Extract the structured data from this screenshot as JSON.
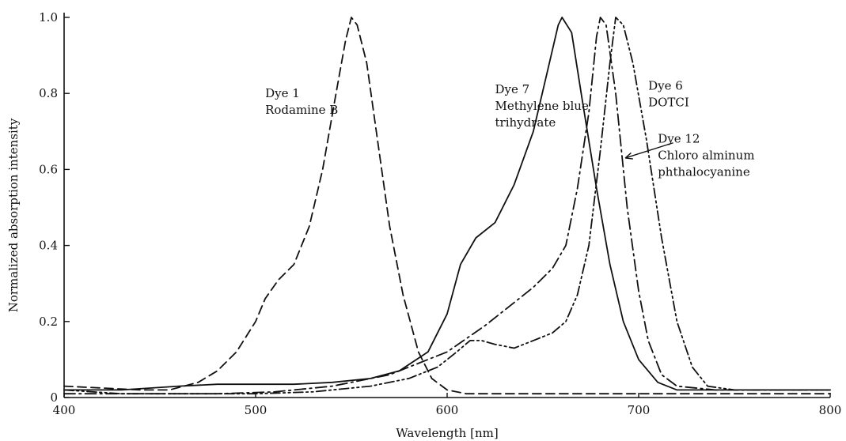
{
  "chart_data": {
    "type": "line",
    "title": "",
    "xlabel": "Wavelength [nm]",
    "ylabel": "Normalized absorption intensity",
    "xlim": [
      400,
      800
    ],
    "ylim": [
      0,
      1.0
    ],
    "xticks": [
      400,
      500,
      600,
      700,
      800
    ],
    "xtick_labels": [
      "400",
      "500",
      "600",
      "700",
      "800"
    ],
    "yticks": [
      0,
      0.2,
      0.4,
      0.6,
      0.8,
      1.0
    ],
    "ytick_labels": [
      "0",
      "0.2",
      "0.4",
      "0.6",
      "0.8",
      "1.0"
    ],
    "grid": false,
    "legend": "none",
    "series": [
      {
        "dash": "dashed",
        "points": [
          [
            400,
            0.03
          ],
          [
            420,
            0.025
          ],
          [
            440,
            0.02
          ],
          [
            455,
            0.02
          ],
          [
            470,
            0.04
          ],
          [
            480,
            0.07
          ],
          [
            490,
            0.12
          ],
          [
            500,
            0.2
          ],
          [
            505,
            0.26
          ],
          [
            512,
            0.31
          ],
          [
            520,
            0.35
          ],
          [
            528,
            0.45
          ],
          [
            535,
            0.6
          ],
          [
            542,
            0.8
          ],
          [
            547,
            0.94
          ],
          [
            550,
            1.0
          ],
          [
            553,
            0.98
          ],
          [
            558,
            0.88
          ],
          [
            563,
            0.7
          ],
          [
            570,
            0.45
          ],
          [
            577,
            0.27
          ],
          [
            585,
            0.12
          ],
          [
            592,
            0.05
          ],
          [
            600,
            0.02
          ],
          [
            610,
            0.01
          ],
          [
            640,
            0.01
          ],
          [
            800,
            0.01
          ]
        ]
      },
      {
        "dash": "solid",
        "points": [
          [
            400,
            0.02
          ],
          [
            430,
            0.02
          ],
          [
            460,
            0.03
          ],
          [
            480,
            0.035
          ],
          [
            520,
            0.035
          ],
          [
            540,
            0.04
          ],
          [
            560,
            0.05
          ],
          [
            575,
            0.07
          ],
          [
            590,
            0.12
          ],
          [
            600,
            0.22
          ],
          [
            607,
            0.35
          ],
          [
            615,
            0.42
          ],
          [
            625,
            0.46
          ],
          [
            635,
            0.56
          ],
          [
            645,
            0.7
          ],
          [
            652,
            0.85
          ],
          [
            658,
            0.98
          ],
          [
            660,
            1.0
          ],
          [
            665,
            0.96
          ],
          [
            670,
            0.8
          ],
          [
            678,
            0.55
          ],
          [
            685,
            0.35
          ],
          [
            692,
            0.2
          ],
          [
            700,
            0.1
          ],
          [
            710,
            0.04
          ],
          [
            720,
            0.02
          ],
          [
            750,
            0.02
          ],
          [
            800,
            0.02
          ]
        ]
      },
      {
        "dash": "dash-dot",
        "points": [
          [
            400,
            0.01
          ],
          [
            430,
            0.01
          ],
          [
            450,
            0.01
          ],
          [
            480,
            0.01
          ],
          [
            510,
            0.015
          ],
          [
            540,
            0.03
          ],
          [
            570,
            0.06
          ],
          [
            600,
            0.12
          ],
          [
            620,
            0.19
          ],
          [
            635,
            0.25
          ],
          [
            645,
            0.29
          ],
          [
            655,
            0.34
          ],
          [
            662,
            0.4
          ],
          [
            668,
            0.55
          ],
          [
            674,
            0.75
          ],
          [
            678,
            0.95
          ],
          [
            680,
            1.0
          ],
          [
            683,
            0.98
          ],
          [
            688,
            0.8
          ],
          [
            694,
            0.5
          ],
          [
            700,
            0.28
          ],
          [
            705,
            0.15
          ],
          [
            712,
            0.06
          ],
          [
            720,
            0.03
          ],
          [
            740,
            0.02
          ],
          [
            800,
            0.02
          ]
        ]
      },
      {
        "dash": "dash-dot-dot",
        "points": [
          [
            400,
            0.02
          ],
          [
            430,
            0.01
          ],
          [
            470,
            0.01
          ],
          [
            500,
            0.01
          ],
          [
            530,
            0.015
          ],
          [
            560,
            0.03
          ],
          [
            580,
            0.05
          ],
          [
            595,
            0.08
          ],
          [
            605,
            0.12
          ],
          [
            612,
            0.15
          ],
          [
            618,
            0.15
          ],
          [
            625,
            0.14
          ],
          [
            635,
            0.13
          ],
          [
            645,
            0.15
          ],
          [
            655,
            0.17
          ],
          [
            662,
            0.2
          ],
          [
            668,
            0.27
          ],
          [
            674,
            0.4
          ],
          [
            680,
            0.65
          ],
          [
            685,
            0.88
          ],
          [
            688,
            1.0
          ],
          [
            692,
            0.98
          ],
          [
            697,
            0.88
          ],
          [
            704,
            0.68
          ],
          [
            712,
            0.42
          ],
          [
            720,
            0.2
          ],
          [
            728,
            0.08
          ],
          [
            736,
            0.03
          ],
          [
            750,
            0.02
          ],
          [
            800,
            0.02
          ]
        ]
      }
    ],
    "annotations": [
      {
        "lines": [
          "Dye 1",
          "Rodamine B"
        ],
        "at": [
          505,
          0.79
        ]
      },
      {
        "lines": [
          "Dye 7",
          "Methylene blue",
          "trihydrate"
        ],
        "at": [
          625,
          0.8
        ]
      },
      {
        "lines": [
          "Dye 6",
          "DOTCI"
        ],
        "at": [
          705,
          0.81
        ]
      },
      {
        "lines": [
          "Dye 12",
          "Chloro alminum",
          "phthalocyanine"
        ],
        "at": [
          710,
          0.67
        ]
      }
    ],
    "arrow": {
      "from": [
        718,
        0.67
      ],
      "to": [
        693,
        0.63
      ]
    }
  }
}
